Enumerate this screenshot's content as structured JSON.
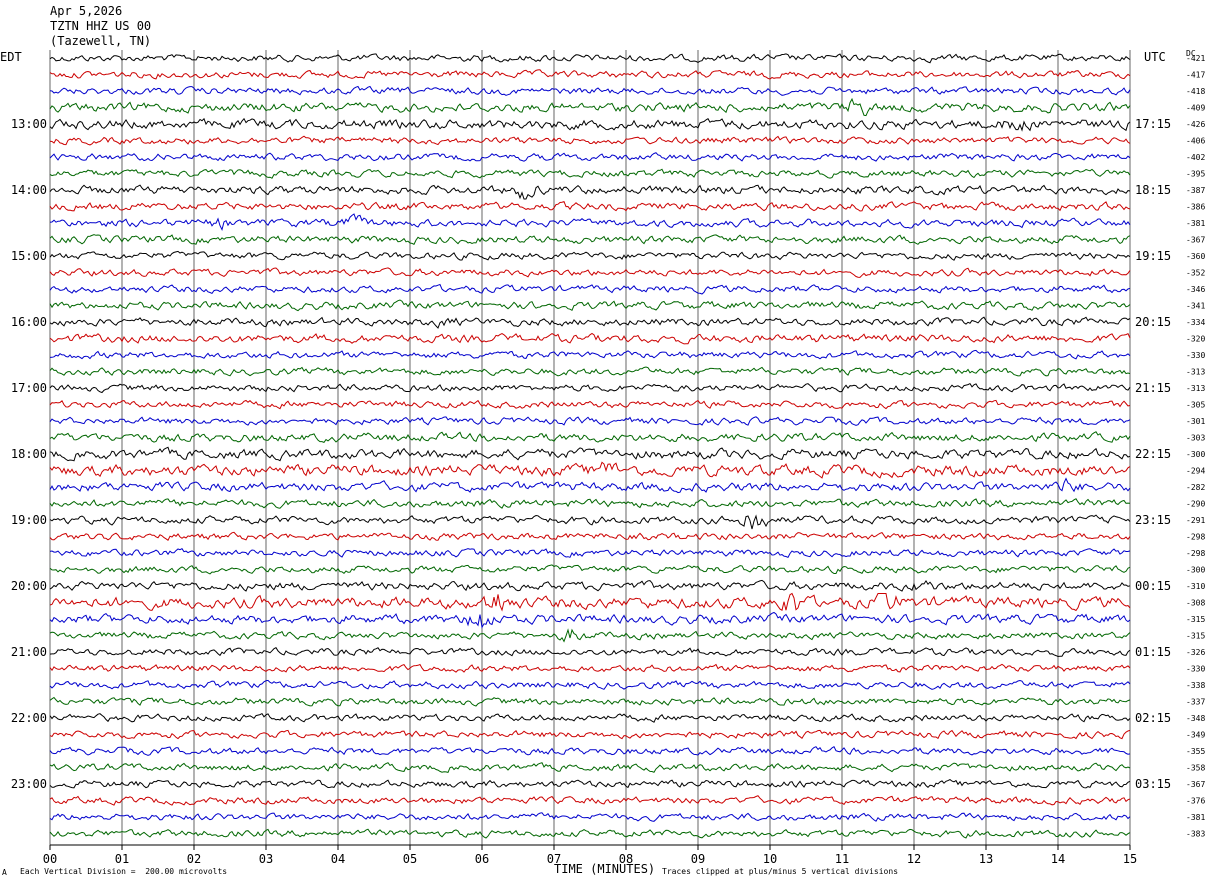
{
  "header": {
    "date": "Apr 5,2026",
    "station": "TZTN HHZ US 00",
    "location": "(Tazewell, TN)"
  },
  "left_tz": "EDT",
  "right_tz": "UTC",
  "dc_label": "DC",
  "footer": {
    "scale_note": "Each Vertical Division =  200.00 microvolts",
    "x_title": "TIME (MINUTES)",
    "clip_note": "Traces clipped at plus/minus 5 vertical divisions",
    "corner_mark": "A"
  },
  "colors": {
    "trace_cycle": [
      "#000000",
      "#cc0000",
      "#0000cc",
      "#006600"
    ],
    "grid": "#000000"
  },
  "chart_data": {
    "type": "line",
    "title": "",
    "xlabel": "TIME (MINUTES)",
    "xlim": [
      0,
      15
    ],
    "x_ticks": [
      "00",
      "01",
      "02",
      "03",
      "04",
      "05",
      "06",
      "07",
      "08",
      "09",
      "10",
      "11",
      "12",
      "13",
      "14",
      "15"
    ],
    "rows_per_hour": 4,
    "left_hour_labels": [
      "13:00",
      "14:00",
      "15:00",
      "16:00",
      "17:00",
      "18:00",
      "19:00",
      "20:00",
      "21:00",
      "22:00",
      "23:00"
    ],
    "right_hour_labels": [
      "17:15",
      "18:15",
      "19:15",
      "20:15",
      "21:15",
      "22:15",
      "23:15",
      "00:15",
      "01:15",
      "02:15",
      "03:15"
    ],
    "dc_offsets": [
      "-421",
      "-417",
      "-418",
      "-409",
      "-426",
      "-406",
      "-402",
      "-395",
      "-387",
      "-386",
      "-381",
      "-367",
      "-360",
      "-352",
      "-346",
      "-341",
      "-334",
      "-320",
      "-330",
      "-313",
      "-313",
      "-305",
      "-301",
      "-303",
      "-300",
      "-294",
      "-282",
      "-290",
      "-291",
      "-298",
      "-298",
      "-300",
      "-310",
      "-308",
      "-315",
      "-315",
      "-326",
      "-330",
      "-338",
      "-337",
      "-348",
      "-349",
      "-355",
      "-358",
      "-367",
      "-376",
      "-381",
      "-383"
    ],
    "row_activity": [
      1.0,
      1.0,
      1.0,
      1.3,
      1.4,
      1.0,
      1.0,
      1.0,
      1.2,
      1.1,
      1.1,
      1.1,
      1.0,
      1.0,
      1.0,
      1.1,
      1.1,
      1.2,
      1.0,
      1.0,
      1.0,
      1.0,
      1.0,
      1.2,
      1.4,
      1.6,
      1.3,
      1.1,
      1.1,
      1.0,
      1.0,
      1.0,
      1.2,
      1.6,
      1.3,
      1.0,
      1.0,
      1.0,
      1.0,
      1.0,
      1.0,
      1.0,
      1.0,
      1.0,
      1.0,
      1.0,
      1.0,
      1.0
    ],
    "events": [
      {
        "row": 3,
        "minute": 11.2,
        "amplitude": 1.8
      },
      {
        "row": 4,
        "minute": 13.4,
        "amplitude": 1.6
      },
      {
        "row": 8,
        "minute": 6.6,
        "amplitude": 1.8
      },
      {
        "row": 10,
        "minute": 2.4,
        "amplitude": 1.4
      },
      {
        "row": 10,
        "minute": 4.2,
        "amplitude": 1.6
      },
      {
        "row": 16,
        "minute": 5.5,
        "amplitude": 1.3
      },
      {
        "row": 25,
        "minute": 7.7,
        "amplitude": 1.5
      },
      {
        "row": 26,
        "minute": 14.1,
        "amplitude": 1.5
      },
      {
        "row": 28,
        "minute": 9.75,
        "amplitude": 2.8
      },
      {
        "row": 32,
        "minute": 12.1,
        "amplitude": 1.5
      },
      {
        "row": 33,
        "minute": 6.2,
        "amplitude": 2.0
      },
      {
        "row": 33,
        "minute": 10.3,
        "amplitude": 2.0
      },
      {
        "row": 33,
        "minute": 11.6,
        "amplitude": 1.8
      },
      {
        "row": 34,
        "minute": 5.95,
        "amplitude": 2.6
      },
      {
        "row": 35,
        "minute": 7.25,
        "amplitude": 1.8
      }
    ]
  }
}
